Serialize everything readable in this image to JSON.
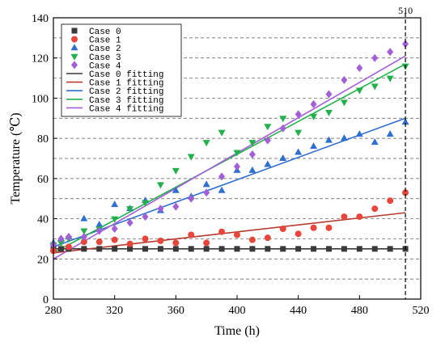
{
  "chart_data": {
    "type": "scatter",
    "title": "",
    "xlabel": "Time (h)",
    "ylabel": "Temperature (℃)",
    "xlim": [
      280,
      520
    ],
    "ylim": [
      0,
      140
    ],
    "xticks": [
      280,
      320,
      360,
      400,
      440,
      480,
      520
    ],
    "yticks": [
      0,
      20,
      40,
      60,
      80,
      100,
      120,
      140
    ],
    "grid": "horizontal-dashed",
    "legend_position": "top-left",
    "annotation": {
      "label": "510",
      "x": 510,
      "style": "vertical-dashed-line"
    },
    "series": [
      {
        "name": "Case 0",
        "marker": "square",
        "color": "#3a3a3a",
        "x": [
          280,
          285,
          290,
          300,
          310,
          320,
          330,
          340,
          350,
          360,
          370,
          380,
          390,
          400,
          410,
          420,
          430,
          440,
          450,
          460,
          470,
          480,
          490,
          500,
          510
        ],
        "y": [
          25,
          25,
          25,
          25,
          25,
          25,
          25,
          25,
          25,
          25,
          25,
          25,
          25,
          25,
          25,
          25,
          25,
          25,
          25,
          25,
          25,
          25,
          25,
          25,
          25
        ]
      },
      {
        "name": "Case 1",
        "marker": "circle",
        "color": "#e8463a",
        "x": [
          280,
          290,
          300,
          310,
          320,
          330,
          340,
          350,
          360,
          370,
          380,
          390,
          400,
          410,
          420,
          430,
          440,
          450,
          460,
          470,
          480,
          490,
          500,
          510
        ],
        "y": [
          24,
          26,
          28.5,
          28.5,
          29.5,
          27.5,
          30,
          29,
          28,
          32,
          28,
          33.5,
          32,
          29.5,
          30.5,
          35,
          32.5,
          35.5,
          35.5,
          41,
          41,
          45,
          49,
          53
        ]
      },
      {
        "name": "Case 2",
        "marker": "triangle-up",
        "color": "#2f6fd0",
        "x": [
          280,
          285,
          290,
          300,
          310,
          320,
          330,
          340,
          350,
          360,
          370,
          380,
          390,
          400,
          410,
          420,
          430,
          440,
          450,
          460,
          470,
          480,
          490,
          500,
          510
        ],
        "y": [
          28,
          30,
          31,
          40,
          37,
          47,
          45,
          49,
          44,
          54,
          51,
          57,
          54,
          64,
          64,
          67,
          70,
          73,
          76,
          79,
          80,
          82,
          78,
          82,
          88
        ]
      },
      {
        "name": "Case 3",
        "marker": "triangle-down",
        "color": "#22b04a",
        "x": [
          280,
          285,
          290,
          300,
          310,
          320,
          330,
          340,
          350,
          360,
          370,
          380,
          390,
          400,
          410,
          420,
          430,
          440,
          450,
          460,
          470,
          480,
          490,
          500,
          510
        ],
        "y": [
          27,
          28,
          30,
          34,
          35,
          40,
          45,
          48,
          57,
          64,
          71,
          78,
          83,
          73,
          78,
          86,
          90,
          83,
          91,
          93,
          98,
          104,
          106,
          110,
          116
        ]
      },
      {
        "name": "Case 4",
        "marker": "diamond",
        "color": "#a35fd6",
        "x": [
          280,
          285,
          290,
          300,
          310,
          320,
          330,
          340,
          350,
          360,
          370,
          380,
          390,
          400,
          410,
          420,
          430,
          440,
          450,
          460,
          470,
          480,
          490,
          500,
          510
        ],
        "y": [
          27,
          30,
          31,
          31,
          34,
          35,
          38,
          41,
          45,
          46,
          50,
          53,
          61,
          66,
          72,
          79,
          85,
          92,
          97,
          102,
          109,
          115,
          120,
          123,
          127
        ]
      },
      {
        "name": "Case 0 fitting",
        "line": true,
        "color": "#3a3a3a",
        "x": [
          280,
          510
        ],
        "y": [
          25,
          25
        ]
      },
      {
        "name": "Case 1 fitting",
        "line": true,
        "color": "#b73a30",
        "x": [
          280,
          510
        ],
        "y": [
          23,
          43
        ]
      },
      {
        "name": "Case 2 fitting",
        "line": true,
        "color": "#2f6fd0",
        "x": [
          280,
          510
        ],
        "y": [
          26,
          90
        ]
      },
      {
        "name": "Case 3 fitting",
        "line": true,
        "color": "#22b04a",
        "x": [
          280,
          510
        ],
        "y": [
          23,
          117
        ]
      },
      {
        "name": "Case 4 fitting",
        "line": true,
        "color": "#a35fd6",
        "x": [
          280,
          510
        ],
        "y": [
          20,
          121
        ]
      }
    ]
  }
}
